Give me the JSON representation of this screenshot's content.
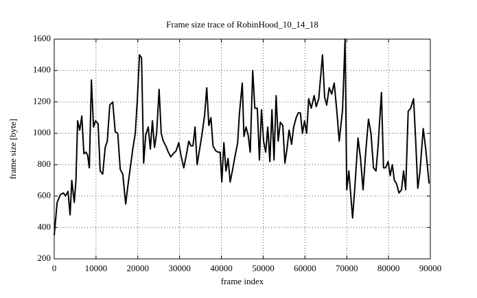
{
  "chart_data": {
    "type": "line",
    "title": "Frame size trace of RobinHood_10_14_18",
    "xlabel": "frame index",
    "ylabel": "frame size [byte]",
    "xlim": [
      0,
      90000
    ],
    "ylim": [
      200,
      1600
    ],
    "xticks": [
      0,
      10000,
      20000,
      30000,
      40000,
      50000,
      60000,
      70000,
      80000,
      90000
    ],
    "yticks": [
      200,
      400,
      600,
      800,
      1000,
      1200,
      1400,
      1600
    ],
    "grid": true,
    "x": [
      0,
      700,
      1500,
      2200,
      2700,
      3300,
      3800,
      4200,
      4800,
      5200,
      5600,
      6100,
      6600,
      7100,
      7600,
      8000,
      8400,
      8900,
      9400,
      9900,
      10500,
      11000,
      11600,
      12200,
      12700,
      13300,
      14000,
      14600,
      15200,
      15800,
      16400,
      17100,
      17600,
      18200,
      18800,
      19400,
      19900,
      20400,
      20900,
      21400,
      21900,
      22500,
      23000,
      23500,
      24000,
      24500,
      25100,
      25600,
      26100,
      26700,
      27300,
      27900,
      28500,
      29200,
      29800,
      30400,
      31000,
      31600,
      32200,
      32700,
      33200,
      33700,
      34200,
      34800,
      35400,
      36000,
      36500,
      37000,
      37500,
      38000,
      38600,
      39200,
      39700,
      40100,
      40600,
      41100,
      41600,
      42100,
      42700,
      43300,
      43900,
      44300,
      45000,
      45400,
      45900,
      46400,
      46900,
      47500,
      48000,
      48600,
      49100,
      49600,
      50100,
      50600,
      51100,
      51600,
      52100,
      52600,
      53100,
      53600,
      54100,
      54700,
      55200,
      55700,
      56200,
      56800,
      57300,
      57900,
      58400,
      58900,
      59400,
      59900,
      60400,
      60900,
      61500,
      62200,
      62700,
      63300,
      64200,
      64700,
      65200,
      65800,
      66400,
      67000,
      67600,
      68200,
      69000,
      69600,
      70000,
      70500,
      71400,
      72000,
      72700,
      73300,
      73900,
      74600,
      75200,
      75800,
      76400,
      77000,
      77500,
      78300,
      78800,
      79300,
      79900,
      80400,
      80900,
      81400,
      81900,
      82500,
      83100,
      83600,
      84100,
      84700,
      85300,
      86000,
      86500,
      87000,
      87500,
      88300,
      88900,
      89700
    ],
    "series": [
      {
        "color": "#000000",
        "values": [
          350,
          560,
          610,
          620,
          600,
          630,
          480,
          700,
          560,
          700,
          1080,
          1020,
          1110,
          870,
          880,
          860,
          780,
          1340,
          1040,
          1080,
          1060,
          760,
          740,
          910,
          950,
          1180,
          1200,
          1010,
          1000,
          770,
          740,
          550,
          660,
          780,
          900,
          1000,
          1220,
          1500,
          1480,
          810,
          990,
          1040,
          900,
          1080,
          910,
          1000,
          1280,
          1000,
          950,
          920,
          880,
          850,
          870,
          890,
          940,
          850,
          780,
          860,
          950,
          920,
          920,
          1040,
          800,
          900,
          1000,
          1120,
          1290,
          1050,
          1100,
          920,
          890,
          880,
          880,
          690,
          940,
          760,
          840,
          690,
          770,
          860,
          940,
          1120,
          1320,
          980,
          1040,
          990,
          880,
          1400,
          1160,
          1160,
          830,
          1150,
          950,
          880,
          1040,
          820,
          1150,
          830,
          1240,
          950,
          1070,
          1050,
          810,
          900,
          1020,
          930,
          1040,
          1100,
          1130,
          1130,
          1000,
          1080,
          1000,
          1220,
          1160,
          1240,
          1170,
          1220,
          1500,
          1230,
          1180,
          1290,
          1250,
          1320,
          1150,
          950,
          1150,
          1600,
          640,
          760,
          460,
          680,
          970,
          840,
          640,
          900,
          1090,
          1000,
          780,
          760,
          920,
          1260,
          780,
          780,
          820,
          730,
          800,
          700,
          680,
          620,
          640,
          760,
          640,
          1140,
          1160,
          1220,
          950,
          650,
          750,
          1030,
          900,
          680
        ]
      }
    ]
  }
}
